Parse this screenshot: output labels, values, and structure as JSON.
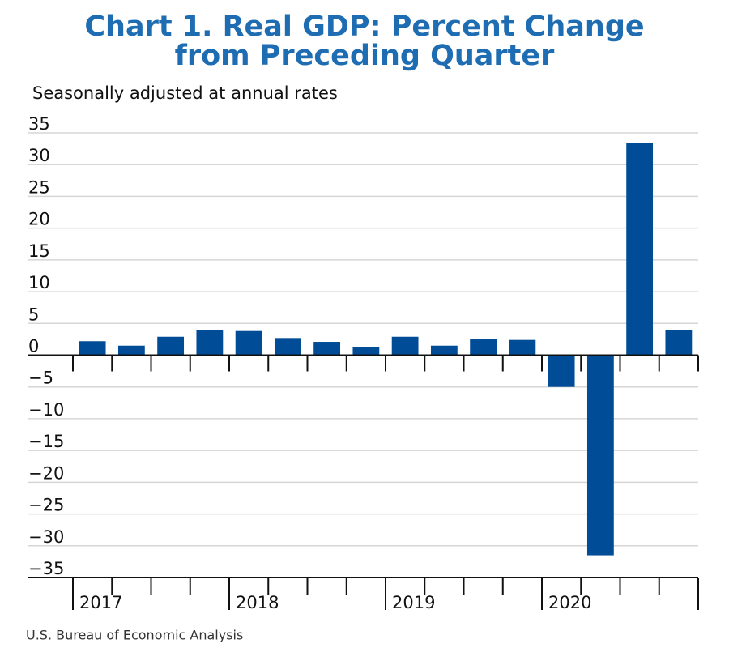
{
  "chart_data": {
    "type": "bar",
    "title": [
      "Chart 1. Real GDP: Percent Change",
      "from Preceding Quarter"
    ],
    "subtitle": "Seasonally adjusted at annual rates",
    "source": "U.S. Bureau of Economic Analysis",
    "categories": [
      "2017",
      null,
      null,
      null,
      "2018",
      null,
      null,
      null,
      "2019",
      null,
      null,
      null,
      "2020",
      null,
      null,
      null
    ],
    "values": [
      2.2,
      1.5,
      2.9,
      3.9,
      3.8,
      2.7,
      2.1,
      1.3,
      2.9,
      1.5,
      2.6,
      2.4,
      -5.0,
      -31.5,
      33.4,
      4.0
    ],
    "color": "#004c97",
    "ylim": [
      -35,
      35
    ],
    "yticks": [
      35,
      30,
      25,
      20,
      15,
      10,
      5,
      0,
      {
        "value": -5,
        "label": "−5"
      },
      {
        "value": -10,
        "label": "−10"
      },
      {
        "value": -15,
        "label": "−15"
      },
      {
        "value": -20,
        "label": "−20"
      },
      {
        "value": -25,
        "label": "−25"
      },
      {
        "value": -30,
        "label": "−30"
      },
      {
        "value": -35,
        "label": "−35"
      }
    ],
    "grid": true
  }
}
